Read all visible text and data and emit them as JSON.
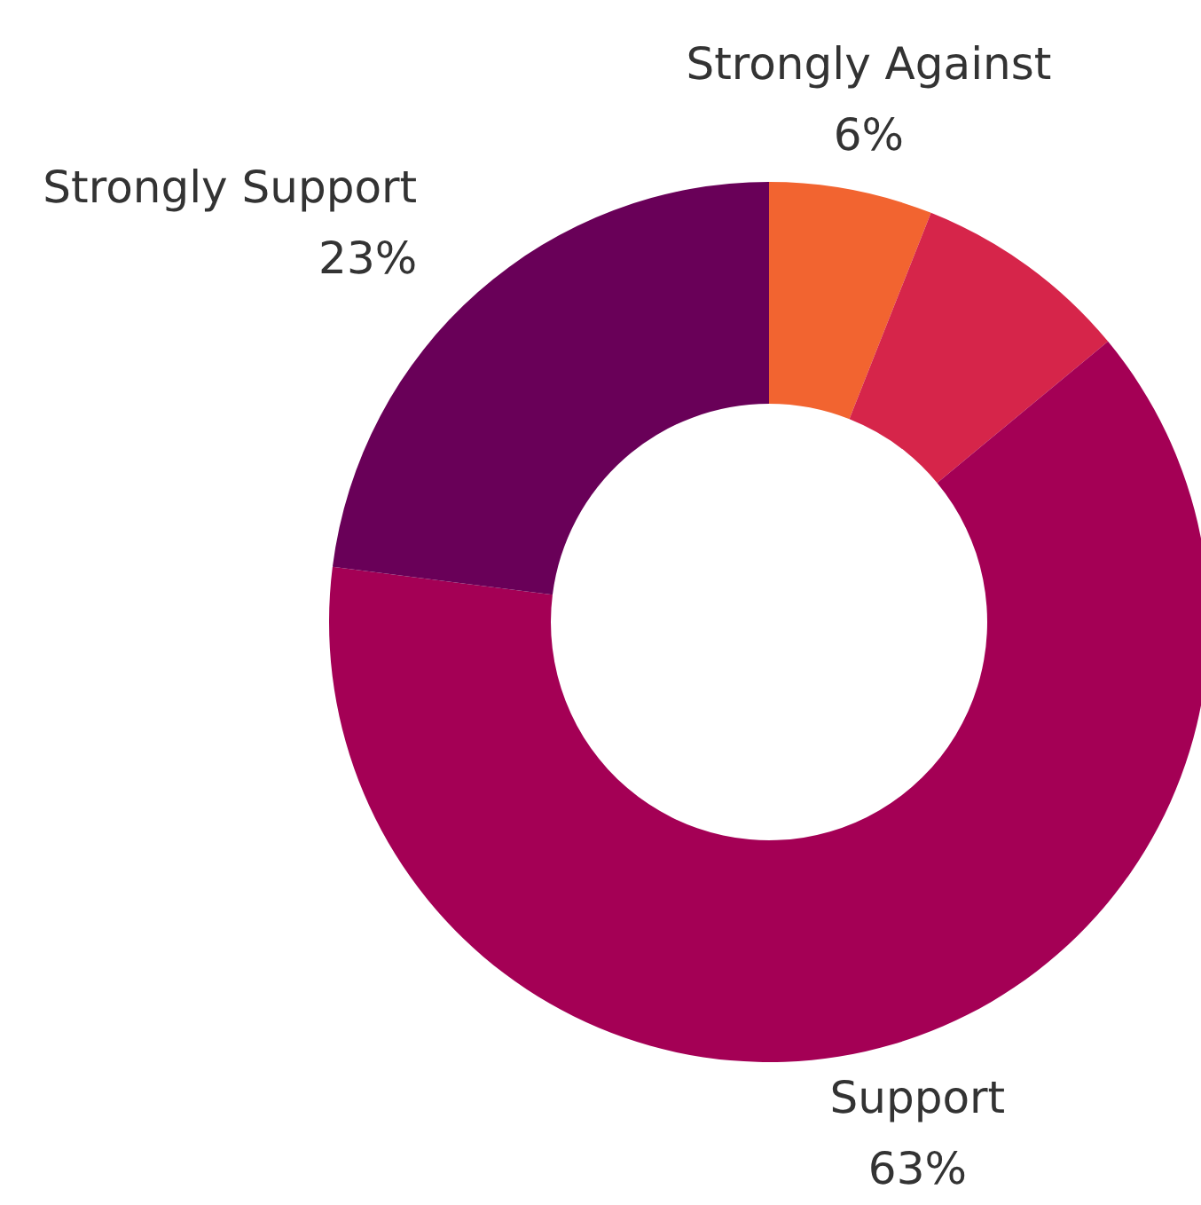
{
  "chart_data": {
    "type": "donut",
    "categories": [
      "Strongly Against",
      null,
      "Support",
      "Strongly Support"
    ],
    "values": [
      6,
      8,
      63,
      23
    ],
    "colors": [
      "#f26430",
      "#d6254a",
      "#a40055",
      "#690058"
    ],
    "value_labels": [
      "6%",
      null,
      "63%",
      "23%"
    ]
  }
}
